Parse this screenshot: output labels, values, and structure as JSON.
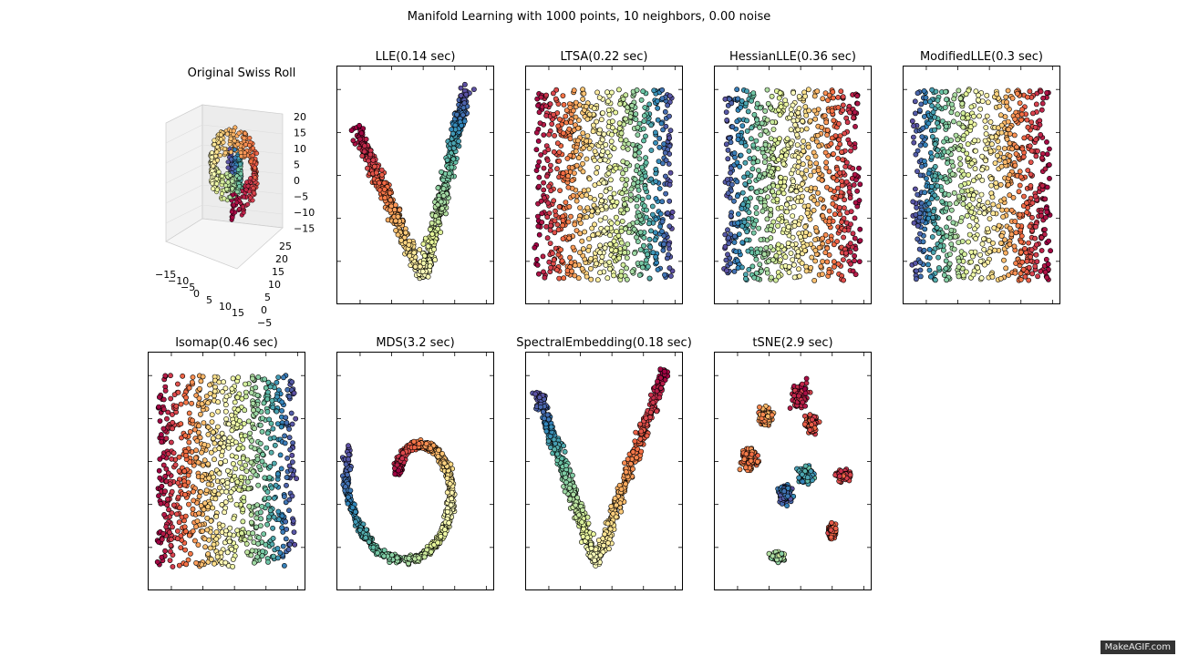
{
  "figure": {
    "suptitle": "Manifold Learning with 1000 points, 10 neighbors, 0.00 noise",
    "watermark": "MakeAGIF.com"
  },
  "chart_data": [
    {
      "id": "swiss",
      "type": "scatter3d",
      "title": "Original Swiss Roll",
      "z_ticks": [
        "20",
        "15",
        "10",
        "5",
        "0",
        "−5",
        "−10",
        "−15"
      ],
      "y_ticks": [
        "25",
        "20",
        "15",
        "10",
        "5",
        "0",
        "−5"
      ],
      "x_ticks": [
        "−15",
        "−10",
        "−5",
        "0",
        "5",
        "10",
        "15"
      ],
      "colormap": "Spectral"
    },
    {
      "id": "lle",
      "type": "scatter",
      "title": "LLE(0.14 sec)",
      "shape": "v_narrow",
      "colormap": "Spectral"
    },
    {
      "id": "ltsa",
      "type": "scatter",
      "title": "LTSA(0.22 sec)",
      "shape": "rect",
      "reverse": true,
      "colormap": "Spectral"
    },
    {
      "id": "hessian",
      "type": "scatter",
      "title": "HessianLLE(0.36 sec)",
      "shape": "rect",
      "reverse": false,
      "colormap": "Spectral"
    },
    {
      "id": "modified",
      "type": "scatter",
      "title": "ModifiedLLE(0.3 sec)",
      "shape": "rect",
      "reverse": false,
      "colormap": "Spectral"
    },
    {
      "id": "isomap",
      "type": "scatter",
      "title": "Isomap(0.46 sec)",
      "shape": "rect",
      "reverse": true,
      "colormap": "Spectral"
    },
    {
      "id": "mds",
      "type": "scatter",
      "title": "MDS(3.2 sec)",
      "shape": "spiral",
      "colormap": "Spectral"
    },
    {
      "id": "spectral",
      "type": "scatter",
      "title": "SpectralEmbedding(0.18 sec)",
      "shape": "v_wide",
      "colormap": "Spectral"
    },
    {
      "id": "tsne",
      "type": "scatter",
      "title": "tSNE(2.9 sec)",
      "shape": "clusters",
      "colormap": "Spectral"
    }
  ]
}
